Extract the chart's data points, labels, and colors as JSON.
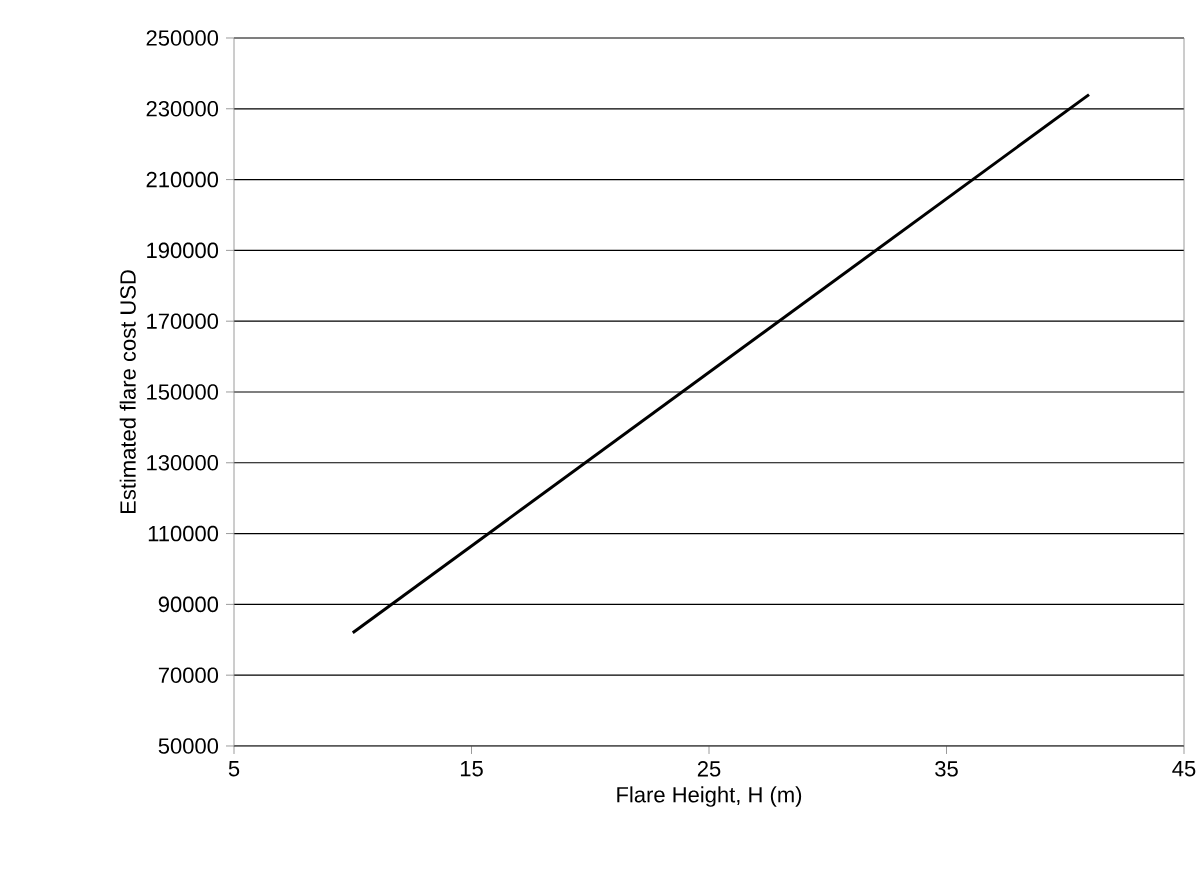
{
  "chart_data": {
    "type": "line",
    "xlabel": "Flare Height, H (m)",
    "ylabel": "Estimated flare cost USD",
    "x": [
      10,
      41
    ],
    "series": [
      {
        "color": "#000000",
        "values": [
          82000,
          234000
        ]
      }
    ],
    "xlim": [
      5,
      45
    ],
    "xticks": [
      5,
      15,
      25,
      35,
      45
    ],
    "ylim": [
      50000,
      250000
    ],
    "yticks": [
      50000,
      70000,
      90000,
      110000,
      130000,
      150000,
      170000,
      190000,
      210000,
      230000,
      250000
    ],
    "grid": "y",
    "marker": "none",
    "line_style": "solid"
  }
}
